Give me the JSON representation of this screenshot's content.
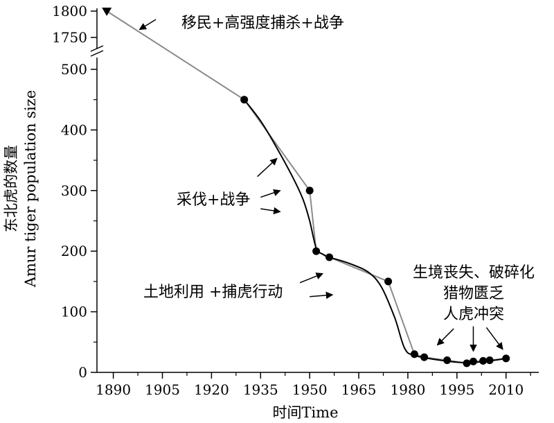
{
  "chart_data": {
    "type": "line",
    "xlabel": "时间Time",
    "ylabel_cn": "东北虎的数量",
    "ylabel_en": "Amur tiger population size",
    "x_ticks": [
      1890,
      1905,
      1920,
      1935,
      1950,
      1965,
      1980,
      1995,
      2010
    ],
    "xlim": [
      1885,
      2020
    ],
    "y_ticks_lower": [
      0,
      100,
      200,
      300,
      400,
      500
    ],
    "y_ticks_upper": [
      1750,
      1800
    ],
    "ylim_lower": [
      0,
      500
    ],
    "ylim_upper": [
      1750,
      1800
    ],
    "axis_break": true,
    "grid": false,
    "series": [
      {
        "points": [
          {
            "x": 1888,
            "y": 1800,
            "marker": "triangle-down"
          },
          {
            "x": 1930,
            "y": 450
          },
          {
            "x": 1950,
            "y": 300
          },
          {
            "x": 1952,
            "y": 200
          },
          {
            "x": 1956,
            "y": 190
          },
          {
            "x": 1974,
            "y": 150
          },
          {
            "x": 1982,
            "y": 30
          },
          {
            "x": 1985,
            "y": 25
          },
          {
            "x": 1992,
            "y": 20
          },
          {
            "x": 1998,
            "y": 15
          },
          {
            "x": 2000,
            "y": 18
          },
          {
            "x": 2003,
            "y": 19
          },
          {
            "x": 2005,
            "y": 20
          },
          {
            "x": 2010,
            "y": 23
          }
        ]
      }
    ],
    "smooth_curve": [
      {
        "x": 1930,
        "y": 450
      },
      {
        "x": 1935,
        "y": 415
      },
      {
        "x": 1940,
        "y": 370
      },
      {
        "x": 1945,
        "y": 320
      },
      {
        "x": 1948,
        "y": 285
      },
      {
        "x": 1950,
        "y": 250
      },
      {
        "x": 1952,
        "y": 205
      },
      {
        "x": 1954,
        "y": 195
      },
      {
        "x": 1956,
        "y": 190
      },
      {
        "x": 1962,
        "y": 180
      },
      {
        "x": 1968,
        "y": 165
      },
      {
        "x": 1972,
        "y": 140
      },
      {
        "x": 1976,
        "y": 90
      },
      {
        "x": 1979,
        "y": 40
      },
      {
        "x": 1982,
        "y": 28
      },
      {
        "x": 1990,
        "y": 20
      },
      {
        "x": 1998,
        "y": 16
      },
      {
        "x": 2005,
        "y": 19
      },
      {
        "x": 2010,
        "y": 23
      }
    ],
    "annotations": [
      {
        "lines": [
          "移民+高强度捕杀+战争"
        ],
        "arrows": [
          {
            "from": [
              1903,
              1784
            ],
            "to": [
              1898,
              1765
            ]
          }
        ]
      },
      {
        "lines": [
          "采伐+战争"
        ],
        "arrows": [
          {
            "from": [
              1934,
              323
            ],
            "to": [
              1940,
              353
            ]
          },
          {
            "from": [
              1935,
              289
            ],
            "to": [
              1941,
              300
            ]
          },
          {
            "from": [
              1935,
              270
            ],
            "to": [
              1941,
              265
            ]
          }
        ]
      },
      {
        "lines": [
          "土地利用 +捕虎行动"
        ],
        "arrows": [
          {
            "from": [
              1947,
              148
            ],
            "to": [
              1954,
              163
            ]
          },
          {
            "from": [
              1950,
              125
            ],
            "to": [
              1957,
              128
            ]
          }
        ]
      },
      {
        "lines": [
          "生境丧失、破碎化",
          "猎物匮乏",
          "人虎冲突"
        ],
        "arrows": [
          {
            "from": [
              1994,
              72
            ],
            "to": [
              1989,
              45
            ]
          },
          {
            "from": [
              2000,
              76
            ],
            "to": [
              2000,
              35
            ]
          },
          {
            "from": [
              2004,
              74
            ],
            "to": [
              2009,
              38
            ]
          }
        ]
      }
    ]
  }
}
